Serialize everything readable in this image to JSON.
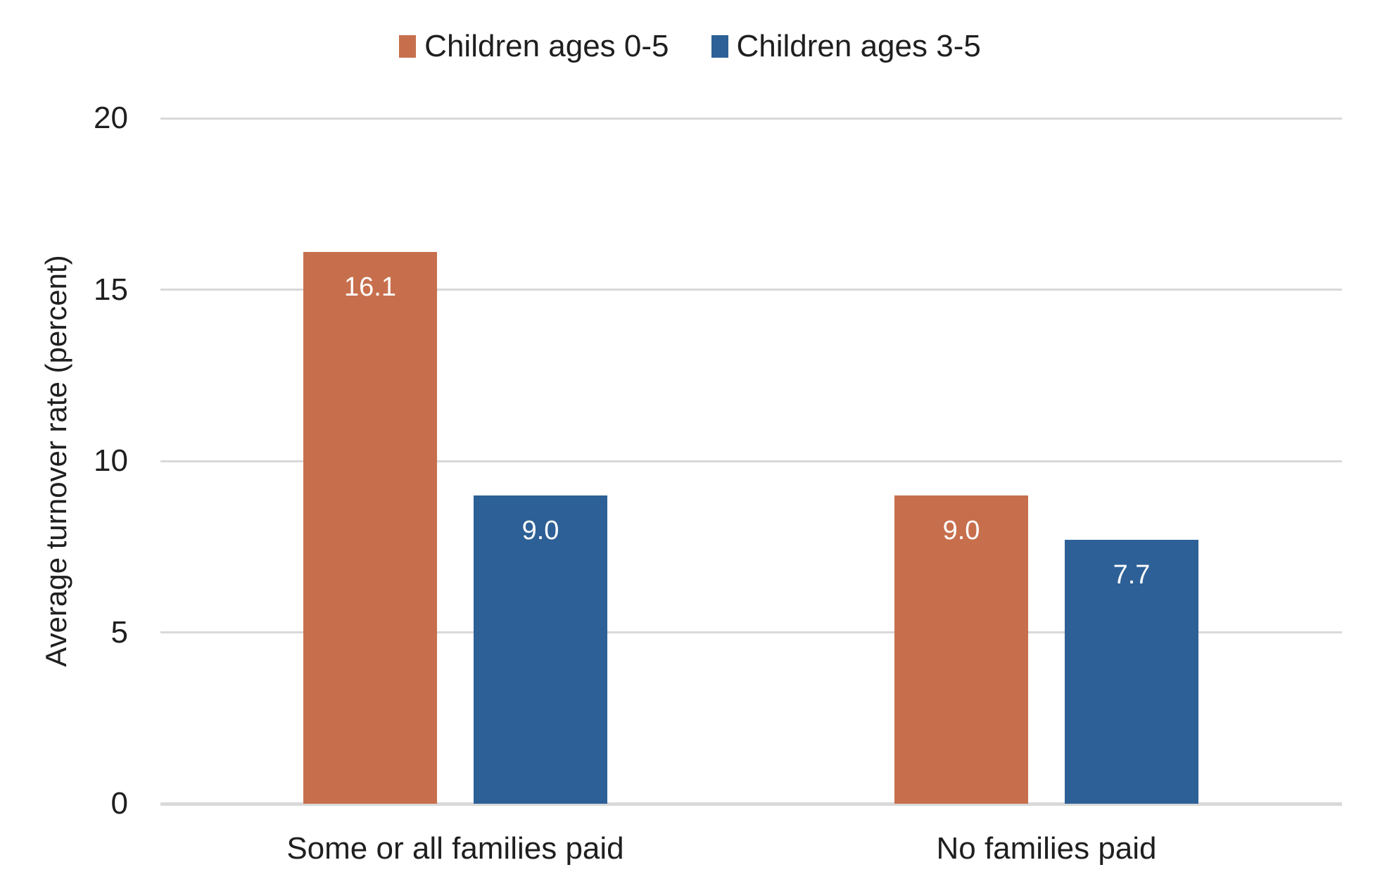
{
  "chart_data": {
    "type": "bar",
    "title": "",
    "categories": [
      "Some or all families paid",
      "No families paid"
    ],
    "series": [
      {
        "name": "Children ages 0-5",
        "color": "#C76F4D",
        "values": [
          16.1,
          9.0
        ]
      },
      {
        "name": "Children ages 3-5",
        "color": "#2D6096",
        "values": [
          9.0,
          7.7
        ]
      }
    ],
    "xlabel": "",
    "ylabel": "Average turnover rate (percent)",
    "ylim": [
      0,
      20
    ],
    "yticks": [
      0,
      5,
      10,
      15,
      20
    ],
    "grid": "horizontal-gridlines",
    "legend_position": "top-center",
    "value_labels": [
      [
        "16.1",
        "9.0"
      ],
      [
        "9.0",
        "7.7"
      ]
    ],
    "value_label_color": "#FFFFFF"
  },
  "colors": {
    "background": "#FFFFFF",
    "gridline": "#D9D9D9",
    "axis_line": "#D9D9D9",
    "text": "#1F1F1F",
    "series_1": "#C76F4D",
    "series_2": "#2D6096"
  }
}
